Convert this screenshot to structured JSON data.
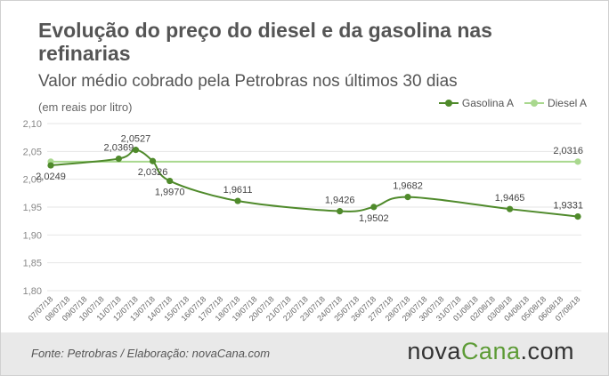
{
  "header": {
    "title": "Evolução do preço do diesel e da gasolina nas refinarias",
    "subtitle": "Valor médio cobrado pela Petrobras nos últimos 30 dias",
    "unit": "(em reais por litro)"
  },
  "footer": {
    "source": "Fonte: Petrobras / Elaboração: novaCana.com",
    "brand_part1": "nova",
    "brand_part2": "Cana",
    "brand_part3": ".com"
  },
  "colors": {
    "gasolina": "#4f8a2b",
    "diesel": "#a9d88e",
    "axis_text": "#555555",
    "grid": "#e6e6e6",
    "brand_green": "#5c9b35"
  },
  "chart_data": {
    "type": "line",
    "title": "Evolução do preço do diesel e da gasolina nas refinarias",
    "subtitle": "Valor médio cobrado pela Petrobras nos últimos 30 dias",
    "ylabel": "(em reais por litro)",
    "ylim": [
      1.8,
      2.1
    ],
    "yticks": [
      "1,80",
      "1,85",
      "1,90",
      "1,95",
      "2,00",
      "2,05",
      "2,10"
    ],
    "grid": true,
    "legend_position": "top-right",
    "categories": [
      "07/07/18",
      "08/07/18",
      "09/07/18",
      "10/07/18",
      "11/07/18",
      "12/07/18",
      "13/07/18",
      "14/07/18",
      "15/07/18",
      "16/07/18",
      "17/07/18",
      "18/07/18",
      "19/07/18",
      "20/07/18",
      "21/07/18",
      "22/07/18",
      "23/07/18",
      "24/07/18",
      "25/07/18",
      "26/07/18",
      "27/07/18",
      "28/07/18",
      "29/07/18",
      "30/07/18",
      "31/07/18",
      "01/08/18",
      "02/08/18",
      "03/08/18",
      "04/08/18",
      "05/08/18",
      "06/08/18",
      "07/08/18"
    ],
    "series": [
      {
        "name": "Gasolina A",
        "points": [
          {
            "i": 0,
            "y": 2.0249,
            "label": "2,0249",
            "pos": "below"
          },
          {
            "i": 4,
            "y": 2.0369,
            "label": "2,0369",
            "pos": "above"
          },
          {
            "i": 5,
            "y": 2.0527,
            "label": "2,0527",
            "pos": "above"
          },
          {
            "i": 6,
            "y": 2.0326,
            "label": "2,0326",
            "pos": "below"
          },
          {
            "i": 7,
            "y": 1.997,
            "label": "1,9970",
            "pos": "below"
          },
          {
            "i": 11,
            "y": 1.9611,
            "label": "1,9611",
            "pos": "above"
          },
          {
            "i": 17,
            "y": 1.9426,
            "label": "1,9426",
            "pos": "above"
          },
          {
            "i": 19,
            "y": 1.9502,
            "label": "1,9502",
            "pos": "below"
          },
          {
            "i": 21,
            "y": 1.9682,
            "label": "1,9682",
            "pos": "above"
          },
          {
            "i": 27,
            "y": 1.9465,
            "label": "1,9465",
            "pos": "above"
          },
          {
            "i": 31,
            "y": 1.9331,
            "label": "1,9331",
            "pos": "above"
          }
        ]
      },
      {
        "name": "Diesel A",
        "points": [
          {
            "i": 0,
            "y": 2.0316,
            "label": "",
            "pos": "none"
          },
          {
            "i": 31,
            "y": 2.0316,
            "label": "2,0316",
            "pos": "above"
          }
        ]
      }
    ]
  }
}
